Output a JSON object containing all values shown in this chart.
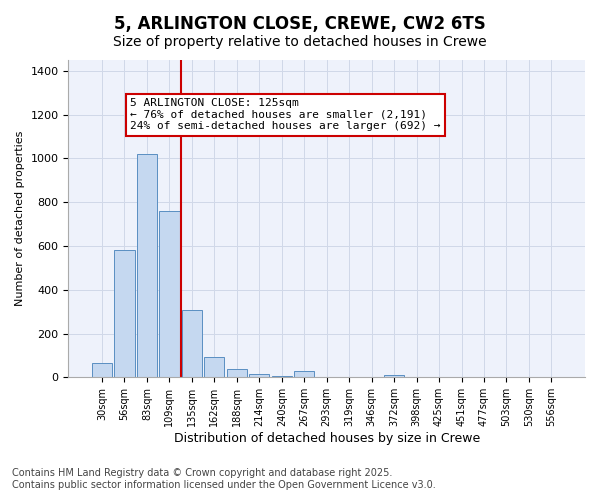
{
  "title_line1": "5, ARLINGTON CLOSE, CREWE, CW2 6TS",
  "title_line2": "Size of property relative to detached houses in Crewe",
  "xlabel": "Distribution of detached houses by size in Crewe",
  "ylabel": "Number of detached properties",
  "categories": [
    "30sqm",
    "56sqm",
    "83sqm",
    "109sqm",
    "135sqm",
    "162sqm",
    "188sqm",
    "214sqm",
    "240sqm",
    "267sqm",
    "293sqm",
    "319sqm",
    "346sqm",
    "372sqm",
    "398sqm",
    "425sqm",
    "451sqm",
    "477sqm",
    "503sqm",
    "530sqm",
    "556sqm"
  ],
  "values": [
    65,
    580,
    1020,
    760,
    310,
    95,
    40,
    15,
    5,
    30,
    0,
    0,
    0,
    10,
    0,
    0,
    0,
    0,
    0,
    0,
    0
  ],
  "bar_color": "#c5d8f0",
  "bar_edge_color": "#5a8fc2",
  "vline_x": 3.5,
  "vline_color": "#cc0000",
  "annotation_text": "5 ARLINGTON CLOSE: 125sqm\n← 76% of detached houses are smaller (2,191)\n24% of semi-detached houses are larger (692) →",
  "annotation_box_color": "#cc0000",
  "ylim": [
    0,
    1450
  ],
  "yticks": [
    0,
    200,
    400,
    600,
    800,
    1000,
    1200,
    1400
  ],
  "grid_color": "#d0d8e8",
  "bg_color": "#eef2fb",
  "footer_line1": "Contains HM Land Registry data © Crown copyright and database right 2025.",
  "footer_line2": "Contains public sector information licensed under the Open Government Licence v3.0.",
  "title_fontsize": 12,
  "subtitle_fontsize": 10,
  "annotation_fontsize": 8,
  "footer_fontsize": 7
}
